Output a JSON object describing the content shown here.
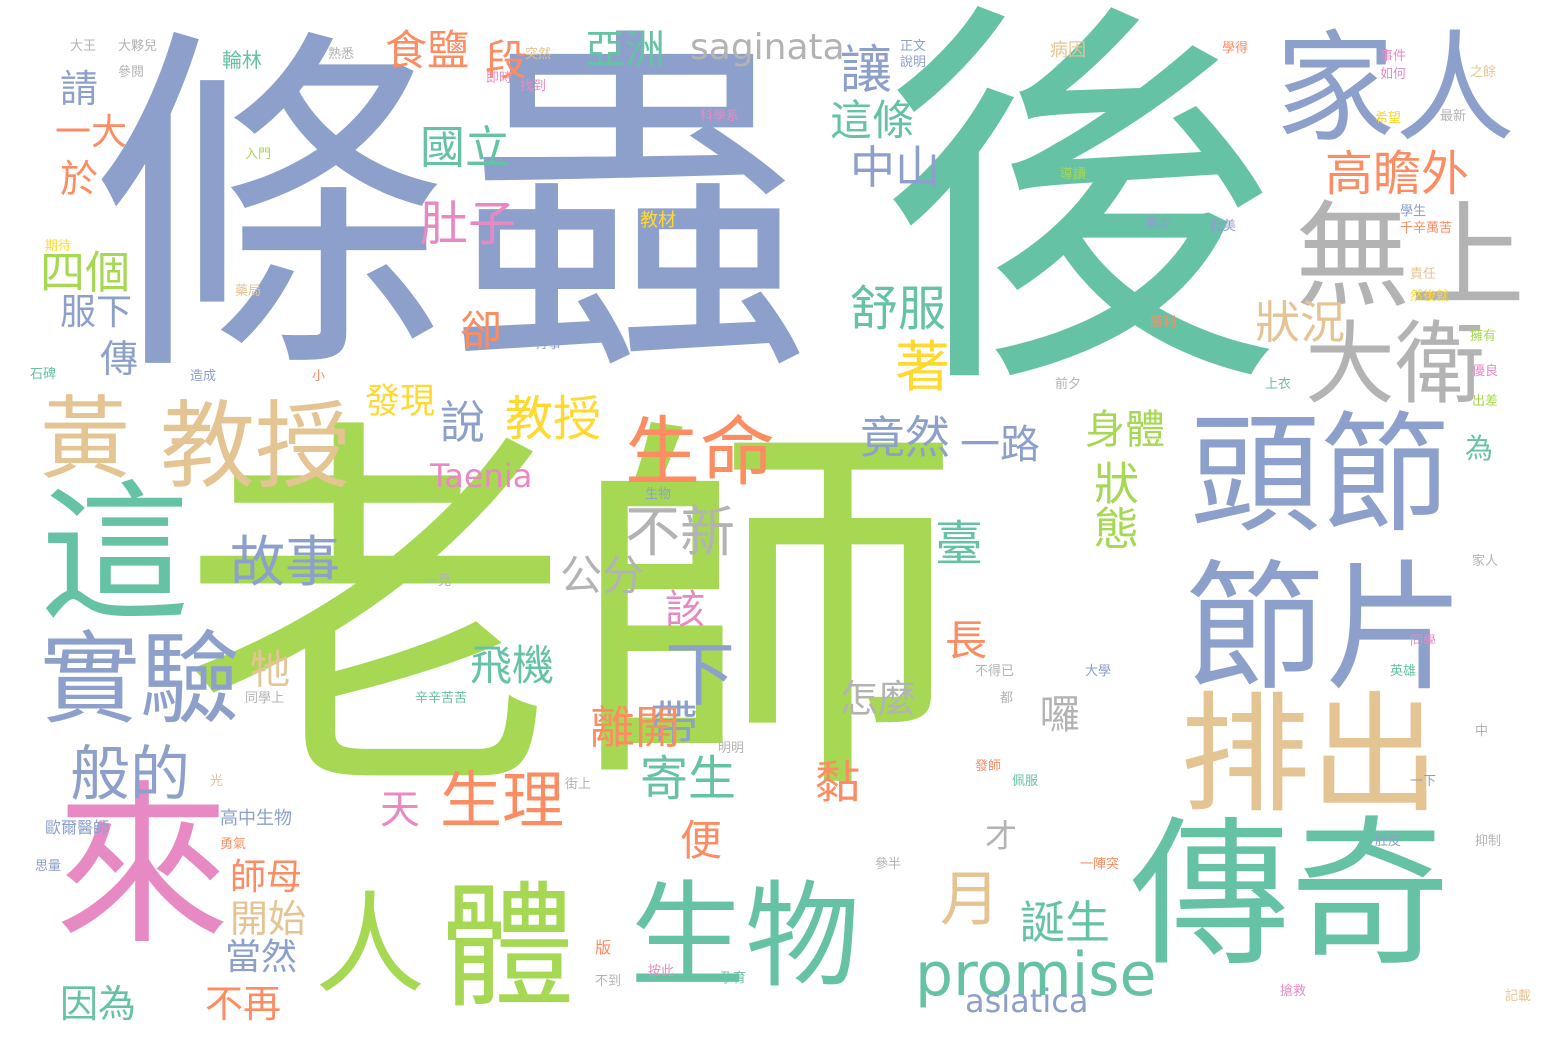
{
  "palette": {
    "green": "#a6d854",
    "teal": "#66c2a5",
    "blue": "#8da0cb",
    "pink": "#e78ac3",
    "orange": "#fc8d62",
    "tan": "#e5c494",
    "gray": "#b3b3b3",
    "yellow": "#ffd92f"
  },
  "words": [
    {
      "text": "老師",
      "color": "green"
    },
    {
      "text": "後",
      "color": "teal"
    },
    {
      "text": "條蟲",
      "color": "blue"
    },
    {
      "text": "來",
      "color": "pink"
    },
    {
      "text": "傳奇",
      "color": "teal"
    },
    {
      "text": "生物",
      "color": "teal"
    },
    {
      "text": "體",
      "color": "green"
    },
    {
      "text": "人",
      "color": "green"
    },
    {
      "text": "節片",
      "color": "blue"
    },
    {
      "text": "頭節",
      "color": "blue"
    },
    {
      "text": "排出",
      "color": "tan"
    },
    {
      "text": "這",
      "color": "teal"
    },
    {
      "text": "實驗",
      "color": "blue"
    },
    {
      "text": "黃",
      "color": "tan"
    },
    {
      "text": "教授",
      "color": "tan"
    },
    {
      "text": "家人",
      "color": "blue"
    },
    {
      "text": "無上",
      "color": "gray"
    },
    {
      "text": "大衛",
      "color": "gray"
    },
    {
      "text": "生命",
      "color": "orange"
    },
    {
      "text": "promise",
      "color": "teal"
    },
    {
      "text": "生理",
      "color": "orange"
    },
    {
      "text": "故事",
      "color": "blue"
    },
    {
      "text": "般的",
      "color": "blue"
    },
    {
      "text": "不新",
      "color": "gray"
    },
    {
      "text": "下",
      "color": "blue"
    },
    {
      "text": "帶",
      "color": "blue"
    },
    {
      "text": "月",
      "color": "tan"
    },
    {
      "text": "說",
      "color": "blue"
    },
    {
      "text": "教授",
      "color": "yellow"
    },
    {
      "text": "竟然",
      "color": "blue"
    },
    {
      "text": "一路",
      "color": "blue"
    },
    {
      "text": "身體",
      "color": "green"
    },
    {
      "text": "舒服",
      "color": "teal"
    },
    {
      "text": "中山",
      "color": "blue"
    },
    {
      "text": "國立",
      "color": "teal"
    },
    {
      "text": "肚子",
      "color": "pink"
    },
    {
      "text": "四個",
      "color": "green"
    },
    {
      "text": "高瞻外",
      "color": "orange"
    },
    {
      "text": "狀況",
      "color": "tan"
    },
    {
      "text": "狀態",
      "color": "green"
    },
    {
      "text": "誕生",
      "color": "teal"
    },
    {
      "text": "著",
      "color": "yellow"
    },
    {
      "text": "亞洲",
      "color": "teal"
    },
    {
      "text": "saginata",
      "color": "gray"
    },
    {
      "text": "食鹽",
      "color": "orange"
    },
    {
      "text": "讓",
      "color": "blue"
    },
    {
      "text": "這條",
      "color": "teal"
    },
    {
      "text": "段",
      "color": "orange"
    },
    {
      "text": "寄生",
      "color": "teal"
    },
    {
      "text": "離開",
      "color": "orange"
    },
    {
      "text": "飛機",
      "color": "teal"
    },
    {
      "text": "怎麼",
      "color": "gray"
    },
    {
      "text": "公分",
      "color": "gray"
    },
    {
      "text": "Taenia",
      "color": "pink"
    },
    {
      "text": "發現",
      "color": "yellow"
    },
    {
      "text": "天",
      "color": "pink"
    },
    {
      "text": "asiatica",
      "color": "blue"
    },
    {
      "text": "開始",
      "color": "tan"
    },
    {
      "text": "當然",
      "color": "blue"
    },
    {
      "text": "不再",
      "color": "orange"
    },
    {
      "text": "因為",
      "color": "teal"
    },
    {
      "text": "師母",
      "color": "orange"
    },
    {
      "text": "便",
      "color": "orange"
    },
    {
      "text": "黏",
      "color": "orange"
    },
    {
      "text": "臺",
      "color": "teal"
    },
    {
      "text": "長",
      "color": "orange"
    },
    {
      "text": "牠",
      "color": "tan"
    },
    {
      "text": "該",
      "color": "pink"
    },
    {
      "text": "卻",
      "color": "orange"
    },
    {
      "text": "傳",
      "color": "blue"
    },
    {
      "text": "服下",
      "color": "blue"
    },
    {
      "text": "於",
      "color": "orange"
    },
    {
      "text": "一大",
      "color": "orange"
    },
    {
      "text": "請",
      "color": "blue"
    },
    {
      "text": "囉",
      "color": "gray"
    },
    {
      "text": "才",
      "color": "gray"
    },
    {
      "text": "為",
      "color": "teal"
    },
    {
      "text": "輪林",
      "color": "teal"
    },
    {
      "text": "大王",
      "color": "gray"
    },
    {
      "text": "大夥兒",
      "color": "gray"
    },
    {
      "text": "參閱",
      "color": "gray"
    },
    {
      "text": "熟悉",
      "color": "gray"
    },
    {
      "text": "突然",
      "color": "tan"
    },
    {
      "text": "找到",
      "color": "pink"
    },
    {
      "text": "即時",
      "color": "pink"
    },
    {
      "text": "正文",
      "color": "blue"
    },
    {
      "text": "說明",
      "color": "blue"
    },
    {
      "text": "病因",
      "color": "tan"
    },
    {
      "text": "學得",
      "color": "orange"
    },
    {
      "text": "事件",
      "color": "pink"
    },
    {
      "text": "如何",
      "color": "pink"
    },
    {
      "text": "之餘",
      "color": "tan"
    },
    {
      "text": "最新",
      "color": "gray"
    },
    {
      "text": "希望",
      "color": "yellow"
    },
    {
      "text": "科學系",
      "color": "pink"
    },
    {
      "text": "入門",
      "color": "green"
    },
    {
      "text": "教材",
      "color": "yellow"
    },
    {
      "text": "期待",
      "color": "yellow"
    },
    {
      "text": "導讀",
      "color": "green"
    },
    {
      "text": "某次",
      "color": "blue"
    },
    {
      "text": "此美",
      "color": "blue"
    },
    {
      "text": "學生",
      "color": "blue"
    },
    {
      "text": "千辛萬苦",
      "color": "orange"
    },
    {
      "text": "石碑",
      "color": "teal"
    },
    {
      "text": "藥局",
      "color": "tan"
    },
    {
      "text": "造成",
      "color": "blue"
    },
    {
      "text": "行事",
      "color": "blue"
    },
    {
      "text": "前夕",
      "color": "gray"
    },
    {
      "text": "上衣",
      "color": "teal"
    },
    {
      "text": "然後就",
      "color": "yellow"
    },
    {
      "text": "責任",
      "color": "tan"
    },
    {
      "text": "勝利",
      "color": "orange"
    },
    {
      "text": "小",
      "color": "orange"
    },
    {
      "text": "生物",
      "color": "blue"
    },
    {
      "text": "擁有",
      "color": "green"
    },
    {
      "text": "優良",
      "color": "pink"
    },
    {
      "text": "出差",
      "color": "green"
    },
    {
      "text": "一見",
      "color": "gray"
    },
    {
      "text": "高中生物",
      "color": "blue"
    },
    {
      "text": "勇氣",
      "color": "orange"
    },
    {
      "text": "歐爾醫師",
      "color": "blue"
    },
    {
      "text": "思量",
      "color": "blue"
    },
    {
      "text": "同學上",
      "color": "gray"
    },
    {
      "text": "辛辛苦苦",
      "color": "teal"
    },
    {
      "text": "街上",
      "color": "gray"
    },
    {
      "text": "明明",
      "color": "gray"
    },
    {
      "text": "都",
      "color": "gray"
    },
    {
      "text": "光",
      "color": "tan"
    },
    {
      "text": "版",
      "color": "orange"
    },
    {
      "text": "不到",
      "color": "gray"
    },
    {
      "text": "按此",
      "color": "pink"
    },
    {
      "text": "孕育",
      "color": "teal"
    },
    {
      "text": "參半",
      "color": "gray"
    },
    {
      "text": "一陣突",
      "color": "orange"
    },
    {
      "text": "中",
      "color": "gray"
    },
    {
      "text": "一下",
      "color": "blue"
    },
    {
      "text": "抑制",
      "color": "gray"
    },
    {
      "text": "肚皮",
      "color": "blue"
    },
    {
      "text": "英雄",
      "color": "teal"
    },
    {
      "text": "家人",
      "color": "gray"
    },
    {
      "text": "同學",
      "color": "pink"
    },
    {
      "text": "發師",
      "color": "orange"
    },
    {
      "text": "不得已",
      "color": "gray"
    },
    {
      "text": "大學",
      "color": "blue"
    },
    {
      "text": "佩服",
      "color": "teal"
    },
    {
      "text": "記載",
      "color": "tan"
    },
    {
      "text": "搶救",
      "color": "pink"
    }
  ]
}
